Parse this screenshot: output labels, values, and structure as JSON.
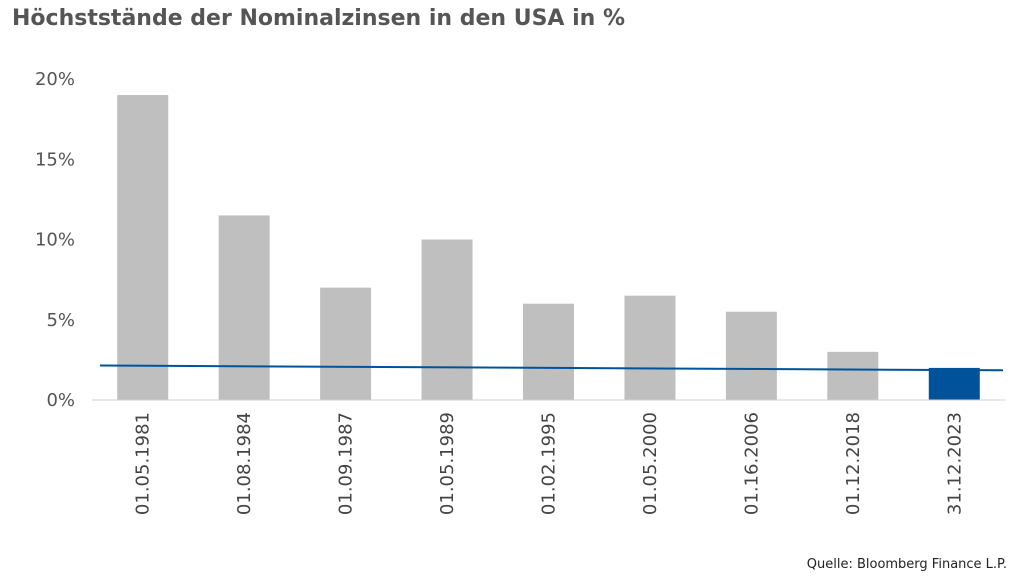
{
  "chart_data": {
    "type": "bar",
    "title": "Höchststände der Nominalzinsen in den USA in %",
    "categories": [
      "01.05.1981",
      "01.08.1984",
      "01.09.1987",
      "01.05.1989",
      "01.02.1995",
      "01.05.2000",
      "01.16.2006",
      "01.12.2018",
      "31.12.2023"
    ],
    "values": [
      19,
      11.5,
      7,
      10,
      6,
      6.5,
      5.5,
      3,
      2
    ],
    "highlight_index": 8,
    "bar_color": "#bfbfbf",
    "highlight_color": "#00539b",
    "trendline": {
      "start_value": 2.15,
      "end_value": 1.85,
      "color": "#00539b"
    },
    "ylim": [
      0,
      20
    ],
    "yticks": [
      0,
      5,
      10,
      15,
      20
    ],
    "ytick_labels": [
      "0%",
      "5%",
      "10%",
      "15%",
      "20%"
    ],
    "xlabel": "",
    "ylabel": "",
    "grid": false,
    "legend": "none"
  },
  "source": "Quelle: Bloomberg Finance L.P."
}
